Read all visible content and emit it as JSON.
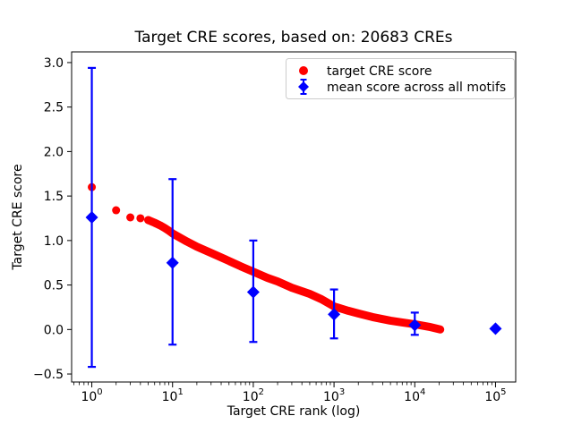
{
  "chart_data": {
    "type": "scatter",
    "title": "Target CRE scores, based on: 20683 CREs",
    "xlabel": "Target CRE rank (log)",
    "ylabel": "Target CRE score",
    "x_scale": "log",
    "xlim_log10": [
      -0.25,
      5.25
    ],
    "ylim": [
      -0.59,
      3.12
    ],
    "grid": false,
    "legend_position": "upper right",
    "x_ticks": [
      1,
      10,
      100,
      1000,
      10000,
      100000
    ],
    "x_tick_base": "10",
    "x_tick_exponents": [
      "0",
      "1",
      "2",
      "3",
      "4",
      "5"
    ],
    "y_ticks": [
      3.0,
      2.5,
      2.0,
      1.5,
      1.0,
      0.5,
      0.0,
      -0.5
    ],
    "y_tick_labels": [
      "3.0",
      "2.5",
      "2.0",
      "1.5",
      "1.0",
      "0.5",
      "0.0",
      "−0.5"
    ],
    "colors": {
      "target": "#ff0000",
      "mean": "#0000ff",
      "spine": "#000000",
      "legend_border": "#cccccc"
    },
    "legend": [
      {
        "label": "target CRE score",
        "marker": "circle",
        "color": "#ff0000"
      },
      {
        "label": "mean score across all motifs",
        "marker": "diamond-errorbar",
        "color": "#0000ff"
      }
    ],
    "series": [
      {
        "name": "target CRE score",
        "type": "scatter_band",
        "color": "#ff0000",
        "marker": "circle",
        "n_points": 20683,
        "points": [
          [
            1,
            1.6
          ],
          [
            2,
            1.34
          ],
          [
            3,
            1.26
          ],
          [
            4,
            1.25
          ],
          [
            5,
            1.23
          ],
          [
            6,
            1.2
          ],
          [
            7,
            1.17
          ],
          [
            8,
            1.14
          ],
          [
            9,
            1.11
          ],
          [
            10,
            1.08
          ],
          [
            15,
            0.99
          ],
          [
            20,
            0.93
          ],
          [
            30,
            0.86
          ],
          [
            50,
            0.77
          ],
          [
            70,
            0.71
          ],
          [
            100,
            0.65
          ],
          [
            150,
            0.58
          ],
          [
            200,
            0.54
          ],
          [
            300,
            0.47
          ],
          [
            500,
            0.4
          ],
          [
            700,
            0.34
          ],
          [
            1000,
            0.26
          ],
          [
            1500,
            0.21
          ],
          [
            2000,
            0.18
          ],
          [
            3000,
            0.14
          ],
          [
            5000,
            0.1
          ],
          [
            7000,
            0.08
          ],
          [
            10000,
            0.06
          ],
          [
            15000,
            0.03
          ],
          [
            20683,
            0.0
          ]
        ]
      },
      {
        "name": "mean score across all motifs",
        "type": "errorbar",
        "color": "#0000ff",
        "marker": "diamond",
        "points": [
          {
            "x": 1,
            "y": 1.26,
            "lo": -0.42,
            "hi": 2.94
          },
          {
            "x": 10,
            "y": 0.75,
            "lo": -0.17,
            "hi": 1.69
          },
          {
            "x": 100,
            "y": 0.42,
            "lo": -0.14,
            "hi": 1.0
          },
          {
            "x": 1000,
            "y": 0.17,
            "lo": -0.1,
            "hi": 0.45
          },
          {
            "x": 10000,
            "y": 0.05,
            "lo": -0.06,
            "hi": 0.19
          },
          {
            "x": 100000,
            "y": 0.01,
            "lo": null,
            "hi": null
          }
        ]
      }
    ]
  }
}
